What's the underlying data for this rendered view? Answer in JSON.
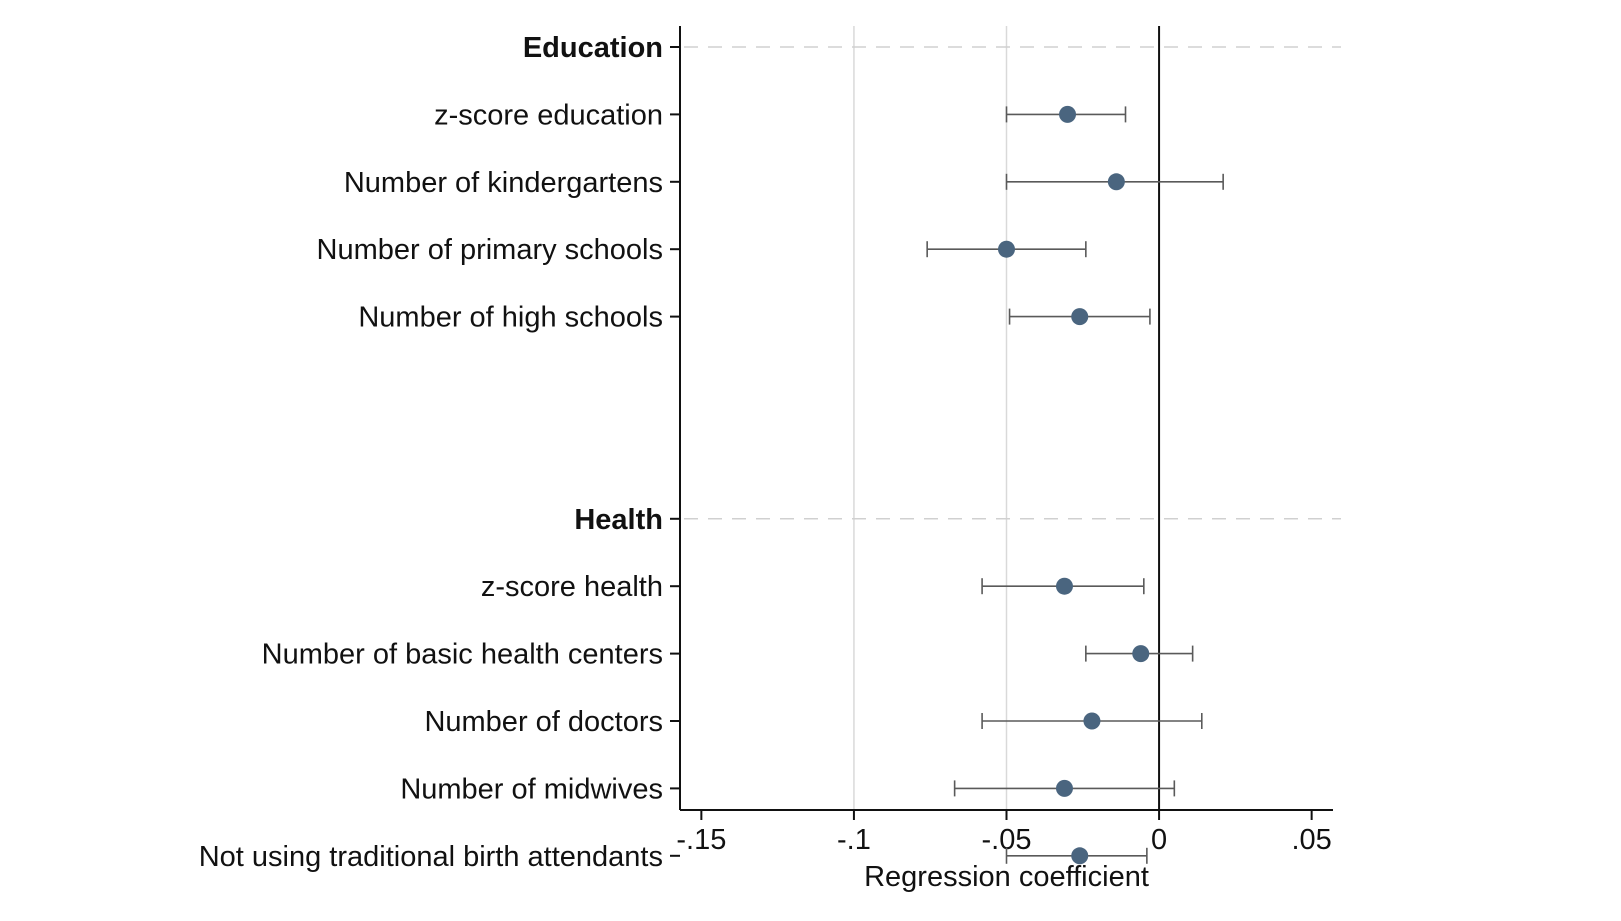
{
  "chart_data": {
    "type": "scatter",
    "subtype": "coefficient-plot",
    "xlabel": "Regression coefficient",
    "xlim": [
      -0.157,
      0.057
    ],
    "xticks": [
      {
        "value": -0.15,
        "label": "-.15"
      },
      {
        "value": -0.1,
        "label": "-.1"
      },
      {
        "value": -0.05,
        "label": "-.05"
      },
      {
        "value": 0,
        "label": "0"
      },
      {
        "value": 0.05,
        "label": ".05"
      }
    ],
    "reference_line": 0,
    "grid_x": [
      -0.1,
      -0.05
    ],
    "marker_color": "#4a657f",
    "ci_color": "#5a5a5a",
    "groups": [
      {
        "header": "Education",
        "rows": [
          {
            "label": "z-score education",
            "estimate": -0.03,
            "ci_low": -0.05,
            "ci_high": -0.011
          },
          {
            "label": "Number of kindergartens",
            "estimate": -0.014,
            "ci_low": -0.05,
            "ci_high": 0.021
          },
          {
            "label": "Number of primary schools",
            "estimate": -0.05,
            "ci_low": -0.076,
            "ci_high": -0.024
          },
          {
            "label": "Number of high schools",
            "estimate": -0.026,
            "ci_low": -0.049,
            "ci_high": -0.003
          }
        ]
      },
      {
        "header": "Health",
        "rows": [
          {
            "label": "z-score health",
            "estimate": -0.031,
            "ci_low": -0.058,
            "ci_high": -0.005
          },
          {
            "label": "Number of basic health centers",
            "estimate": -0.006,
            "ci_low": -0.024,
            "ci_high": 0.011
          },
          {
            "label": "Number of doctors",
            "estimate": -0.022,
            "ci_low": -0.058,
            "ci_high": 0.014
          },
          {
            "label": "Number of midwives",
            "estimate": -0.031,
            "ci_low": -0.067,
            "ci_high": 0.005
          },
          {
            "label": "Not using traditional birth attendants",
            "estimate": -0.026,
            "ci_low": -0.05,
            "ci_high": -0.004
          }
        ]
      }
    ]
  }
}
